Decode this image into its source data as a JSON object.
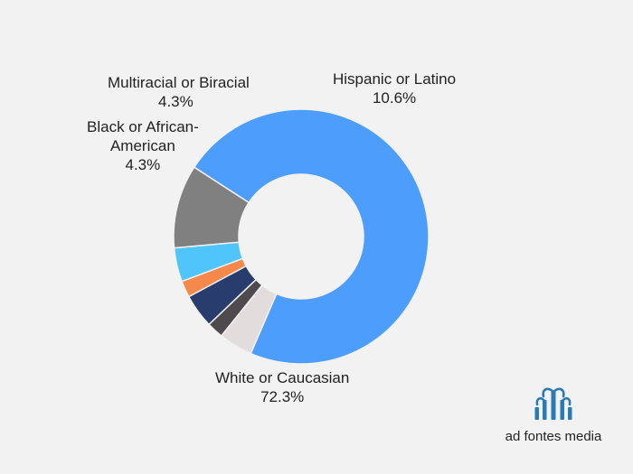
{
  "chart_data": {
    "type": "pie",
    "title": "",
    "slices": [
      {
        "name": "White or Caucasian",
        "value": 72.3,
        "display": "72.3%",
        "color": "#4d9dfc"
      },
      {
        "name": "Black or African-American",
        "value": 4.3,
        "display": "4.3%",
        "color": "#e2dcdc"
      },
      {
        "name": "",
        "value": 2.1,
        "display": "",
        "color": "#4f4a4e"
      },
      {
        "name": "Multiracial or Biracial",
        "value": 4.3,
        "display": "4.3%",
        "color": "#283c6e"
      },
      {
        "name": "",
        "value": 2.1,
        "display": "",
        "color": "#f4894b"
      },
      {
        "name": "",
        "value": 4.3,
        "display": "",
        "color": "#50c5fb"
      },
      {
        "name": "Hispanic or Latino",
        "value": 10.6,
        "display": "10.6%",
        "color": "#808080"
      }
    ],
    "labels": {
      "hispanic": {
        "name": "Hispanic or Latino",
        "value": "10.6%"
      },
      "multiracial": {
        "name": "Multiracial or Biracial",
        "value": "4.3%"
      },
      "black_line1": "Black or African-",
      "black_line2": "American",
      "black_value": "4.3%",
      "white": {
        "name": "White or Caucasian",
        "value": "72.3%"
      }
    }
  },
  "logo": {
    "text": "ad fontes media",
    "icon": "fountain-logo-icon",
    "color": "#2a7bb5"
  }
}
